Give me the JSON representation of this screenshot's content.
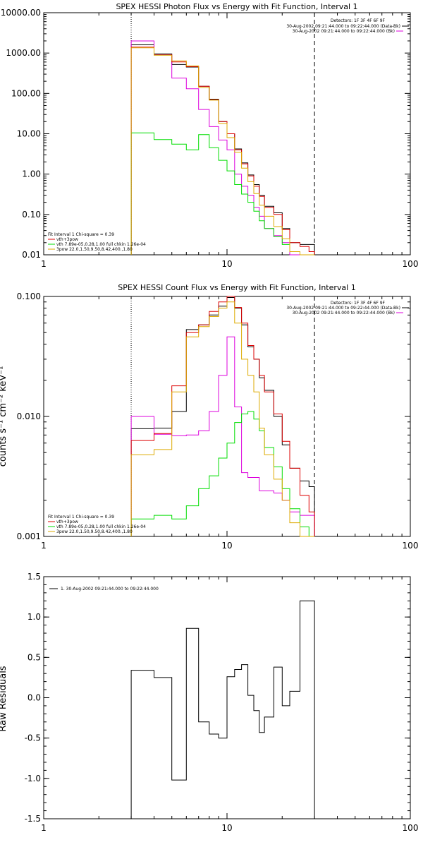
{
  "chart_data": [
    {
      "type": "line",
      "title": "SPEX HESSI Photon Flux vs Energy with Fit Function, Interval 1",
      "xscale": "log",
      "yscale": "log",
      "xlim": [
        1,
        100
      ],
      "ylim": [
        0.01,
        10000
      ],
      "xtick_labels": [
        "1",
        "10",
        "100"
      ],
      "ytick_labels": [
        "0.01",
        "0.10",
        "1.00",
        "10.00",
        "100.00",
        "1000.00",
        "10000.00"
      ],
      "ytick_values": [
        0.01,
        0.1,
        1,
        10,
        100,
        1000,
        10000
      ],
      "xtick_values": [
        1,
        10,
        100
      ],
      "vlines": [
        {
          "x": 3,
          "style": "dotted"
        },
        {
          "x": 30,
          "style": "dashed"
        }
      ],
      "header_lines": [
        "Detectors: 1F 3F 4F 6F 9F",
        "30-Aug-2002 09:21:44.000 to 09:22:44.000 (Data-Bk)",
        "30-Aug-2002 09:21:44.000 to 09:22:44.000 (Bk)"
      ],
      "fit_lines": [
        "Fit Interval 1   Chi-square = 0.39",
        "vth+3pow",
        "vth 7.89e-05,0.28,1.00  full chkin 1.26e-04",
        "3pow 22.0,1.50,9.50,8.42,400.,1.80"
      ],
      "series": [
        {
          "name": "Data-Bk",
          "color": "#000000",
          "edges": [
            3,
            4,
            5,
            6,
            7,
            8,
            9,
            10,
            11,
            12,
            13,
            14,
            15,
            16,
            18,
            20,
            22,
            25,
            28,
            30
          ],
          "values": [
            1600,
            950,
            520,
            450,
            150,
            72,
            20,
            10,
            4.2,
            1.9,
            0.95,
            0.55,
            0.3,
            0.16,
            0.11,
            0.045,
            0.02,
            0.018,
            0.018
          ]
        },
        {
          "name": "Bk",
          "color": "#dd00dd",
          "edges": [
            3,
            4,
            5,
            6,
            7,
            8,
            9,
            10,
            11,
            12,
            13,
            14,
            15,
            16,
            18,
            20,
            22,
            25,
            28,
            30
          ],
          "values": [
            2000,
            900,
            240,
            130,
            40,
            15,
            7,
            4,
            1.0,
            0.5,
            0.3,
            0.15,
            0.09,
            0.045,
            0.03,
            0.02,
            0.01,
            0.01,
            0.01
          ]
        },
        {
          "name": "vth+3pow",
          "color": "#dd0000",
          "edges": [
            3,
            4,
            5,
            6,
            7,
            8,
            9,
            10,
            11,
            12,
            13,
            14,
            15,
            16,
            18,
            20,
            22,
            25,
            28,
            30
          ],
          "values": [
            1400,
            900,
            600,
            460,
            150,
            70,
            20,
            10,
            4.0,
            1.8,
            0.9,
            0.5,
            0.28,
            0.15,
            0.1,
            0.042,
            0.02,
            0.016,
            0.012
          ]
        },
        {
          "name": "vth",
          "color": "#00dd00",
          "edges": [
            3,
            4,
            5,
            6,
            7,
            8,
            9,
            10,
            11,
            12,
            13,
            14,
            15,
            16,
            18,
            20,
            22,
            25,
            28,
            30
          ],
          "values": [
            10.5,
            7.2,
            5.5,
            4.0,
            9.5,
            4.5,
            2.2,
            1.2,
            0.55,
            0.32,
            0.2,
            0.12,
            0.07,
            0.045,
            0.028,
            0.018,
            0.012,
            0.01,
            0.01
          ]
        },
        {
          "name": "3pow",
          "color": "#ddaa00",
          "edges": [
            3,
            4,
            5,
            6,
            7,
            8,
            9,
            10,
            11,
            12,
            13,
            14,
            15,
            16,
            18,
            20,
            22,
            25,
            28,
            30
          ],
          "values": [
            1350,
            880,
            640,
            480,
            140,
            68,
            18,
            8,
            3.5,
            1.4,
            0.65,
            0.33,
            0.17,
            0.09,
            0.05,
            0.025,
            0.012,
            0.01,
            0.01
          ]
        }
      ]
    },
    {
      "type": "line",
      "title": "SPEX HESSI Count Flux vs Energy with Fit Function, Interval 1",
      "ylabel": "counts s⁻¹ cm⁻² keV⁻¹",
      "xscale": "log",
      "yscale": "log",
      "xlim": [
        1,
        100
      ],
      "ylim": [
        0.001,
        0.1
      ],
      "xtick_labels": [
        "1",
        "10",
        "100"
      ],
      "ytick_labels": [
        "0.001",
        "0.010",
        "0.100"
      ],
      "ytick_values": [
        0.001,
        0.01,
        0.1
      ],
      "xtick_values": [
        1,
        10,
        100
      ],
      "vlines": [
        {
          "x": 3,
          "style": "dotted"
        },
        {
          "x": 30,
          "style": "dashed"
        }
      ],
      "header_lines": [
        "Detectors: 1F 3F 4F 6F 9F",
        "30-Aug-2002 09:21:44.000 to 09:22:44.000 (Data-Bk)",
        "30-Aug-2002 09:21:44.000 to 09:22:44.000 (Bk)"
      ],
      "fit_lines": [
        "Fit Interval 1   Chi-square = 0.39",
        "vth+3pow",
        "vth 7.89e-05,0.28,1.00  full chkin 1.26e-04",
        "3pow 22.0,1.50,9.50,8.42,400.,1.80"
      ],
      "series": [
        {
          "name": "Data-Bk",
          "color": "#000000",
          "edges": [
            3,
            4,
            5,
            6,
            7,
            8,
            9,
            10,
            11,
            12,
            13,
            14,
            15,
            16,
            18,
            20,
            22,
            25,
            28,
            30
          ],
          "values": [
            0.0079,
            0.008,
            0.011,
            0.053,
            0.058,
            0.07,
            0.083,
            0.098,
            0.08,
            0.058,
            0.038,
            0.03,
            0.021,
            0.0165,
            0.01,
            0.0058,
            0.0037,
            0.0029,
            0.0026
          ]
        },
        {
          "name": "Bk",
          "color": "#dd00dd",
          "edges": [
            3,
            4,
            5,
            6,
            7,
            8,
            9,
            10,
            11,
            12,
            13,
            14,
            15,
            16,
            18,
            20,
            22,
            25,
            28,
            30
          ],
          "values": [
            0.01,
            0.0071,
            0.0069,
            0.007,
            0.0076,
            0.011,
            0.022,
            0.046,
            0.012,
            0.0034,
            0.0031,
            0.0031,
            0.0024,
            0.0024,
            0.0023,
            0.002,
            0.0016,
            0.0015,
            0.0015
          ]
        },
        {
          "name": "vth+3pow",
          "color": "#dd0000",
          "edges": [
            3,
            4,
            5,
            6,
            7,
            8,
            9,
            10,
            11,
            12,
            13,
            14,
            15,
            16,
            18,
            20,
            22,
            25,
            28,
            30
          ],
          "values": [
            0.0063,
            0.0072,
            0.018,
            0.05,
            0.058,
            0.075,
            0.09,
            0.103,
            0.081,
            0.06,
            0.039,
            0.03,
            0.022,
            0.016,
            0.0105,
            0.0062,
            0.0037,
            0.0022,
            0.0016
          ]
        },
        {
          "name": "vth",
          "color": "#00dd00",
          "edges": [
            3,
            4,
            5,
            6,
            7,
            8,
            9,
            10,
            11,
            12,
            13,
            14,
            15,
            16,
            18,
            20,
            22,
            25,
            28,
            30
          ],
          "values": [
            0.0014,
            0.0015,
            0.0014,
            0.0018,
            0.0025,
            0.0032,
            0.0045,
            0.006,
            0.0089,
            0.0105,
            0.011,
            0.0095,
            0.0076,
            0.0055,
            0.0038,
            0.0025,
            0.0017,
            0.0012,
            0.001
          ]
        },
        {
          "name": "3pow",
          "color": "#ddaa00",
          "edges": [
            3,
            4,
            5,
            6,
            7,
            8,
            9,
            10,
            11,
            12,
            13,
            14,
            15,
            16,
            18,
            20,
            22,
            25,
            28,
            30
          ],
          "values": [
            0.0048,
            0.0053,
            0.016,
            0.046,
            0.056,
            0.068,
            0.08,
            0.09,
            0.06,
            0.03,
            0.022,
            0.016,
            0.008,
            0.0048,
            0.003,
            0.002,
            0.0013,
            0.001,
            0.001
          ]
        }
      ]
    },
    {
      "type": "line",
      "ylabel": "Raw Residuals",
      "xscale": "log",
      "yscale": "linear",
      "xlim": [
        1,
        100
      ],
      "ylim": [
        -1.5,
        1.5
      ],
      "xtick_labels": [
        "1",
        "10",
        "100"
      ],
      "xtick_values": [
        1,
        10,
        100
      ],
      "ytick_labels": [
        "-1.5",
        "-1.0",
        "-0.5",
        "0.0",
        "0.5",
        "1.0",
        "1.5"
      ],
      "ytick_values": [
        -1.5,
        -1.0,
        -0.5,
        0.0,
        0.5,
        1.0,
        1.5
      ],
      "legend": [
        "1. 30-Aug-2002 09:21:44.000 to 09:22:44.000"
      ],
      "series": [
        {
          "name": "1. 30-Aug-2002 09:21:44.000 to 09:22:44.000",
          "color": "#000000",
          "edges": [
            3,
            4,
            5,
            6,
            7,
            8,
            9,
            10,
            11,
            12,
            13,
            14,
            15,
            16,
            18,
            20,
            22,
            25,
            28,
            30
          ],
          "values": [
            0.34,
            0.25,
            -1.02,
            0.86,
            -0.3,
            -0.45,
            -0.5,
            0.26,
            0.35,
            0.41,
            0.03,
            -0.16,
            -0.43,
            -0.24,
            0.38,
            -0.1,
            0.08,
            1.2,
            1.2
          ]
        }
      ]
    }
  ]
}
